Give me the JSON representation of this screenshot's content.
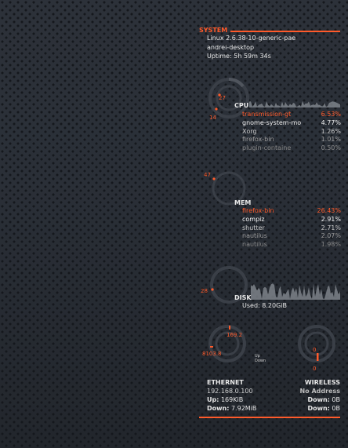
{
  "system": {
    "header": "SYSTEM",
    "kernel": "Linux 2.6.38-10-generic-pae",
    "hostname": "andrei-desktop",
    "uptime": "Uptime: 5h 59m 34s"
  },
  "cpu": {
    "label": "CPU",
    "gauge_outer": "27",
    "gauge_inner": "14",
    "processes": [
      {
        "name": "transmission-gt",
        "value": "6.53%"
      },
      {
        "name": "gnome-system-mo",
        "value": "4.77%"
      },
      {
        "name": "Xorg",
        "value": "1.26%"
      },
      {
        "name": "firefox-bin",
        "value": "1.01%"
      },
      {
        "name": "plugin-containe",
        "value": "0.50%"
      }
    ]
  },
  "mem": {
    "label": "MEM",
    "gauge": "47",
    "processes": [
      {
        "name": "firefox-bin",
        "value": "26.43%"
      },
      {
        "name": "compiz",
        "value": "2.91%"
      },
      {
        "name": "shutter",
        "value": "2.71%"
      },
      {
        "name": "nautilus",
        "value": "2.07%"
      },
      {
        "name": "nautilus",
        "value": "1.98%"
      }
    ]
  },
  "disk": {
    "label": "DISK",
    "gauge": "28",
    "used": "Used: 8.20GiB"
  },
  "network_gauges": {
    "eth_up": "169.2",
    "eth_down": "8103.8",
    "eth_up_label": "Up",
    "eth_down_label": "Down",
    "wifi_up": "0",
    "wifi_down": "0"
  },
  "ethernet": {
    "header": "ETHERNET",
    "address": "192.168.0.100",
    "up_label": "Up:",
    "up": "169KiB",
    "down_label": "Down:",
    "down": "7.92MiB"
  },
  "wireless": {
    "header": "WIRELESS",
    "address": "No Address",
    "down1_label": "Down:",
    "down1": "0B",
    "down2_label": "Down:",
    "down2": "0B"
  },
  "colors": {
    "accent": "#ff5a2a",
    "gauge_track": "#3a3f47",
    "graph": "#8a8f96"
  }
}
